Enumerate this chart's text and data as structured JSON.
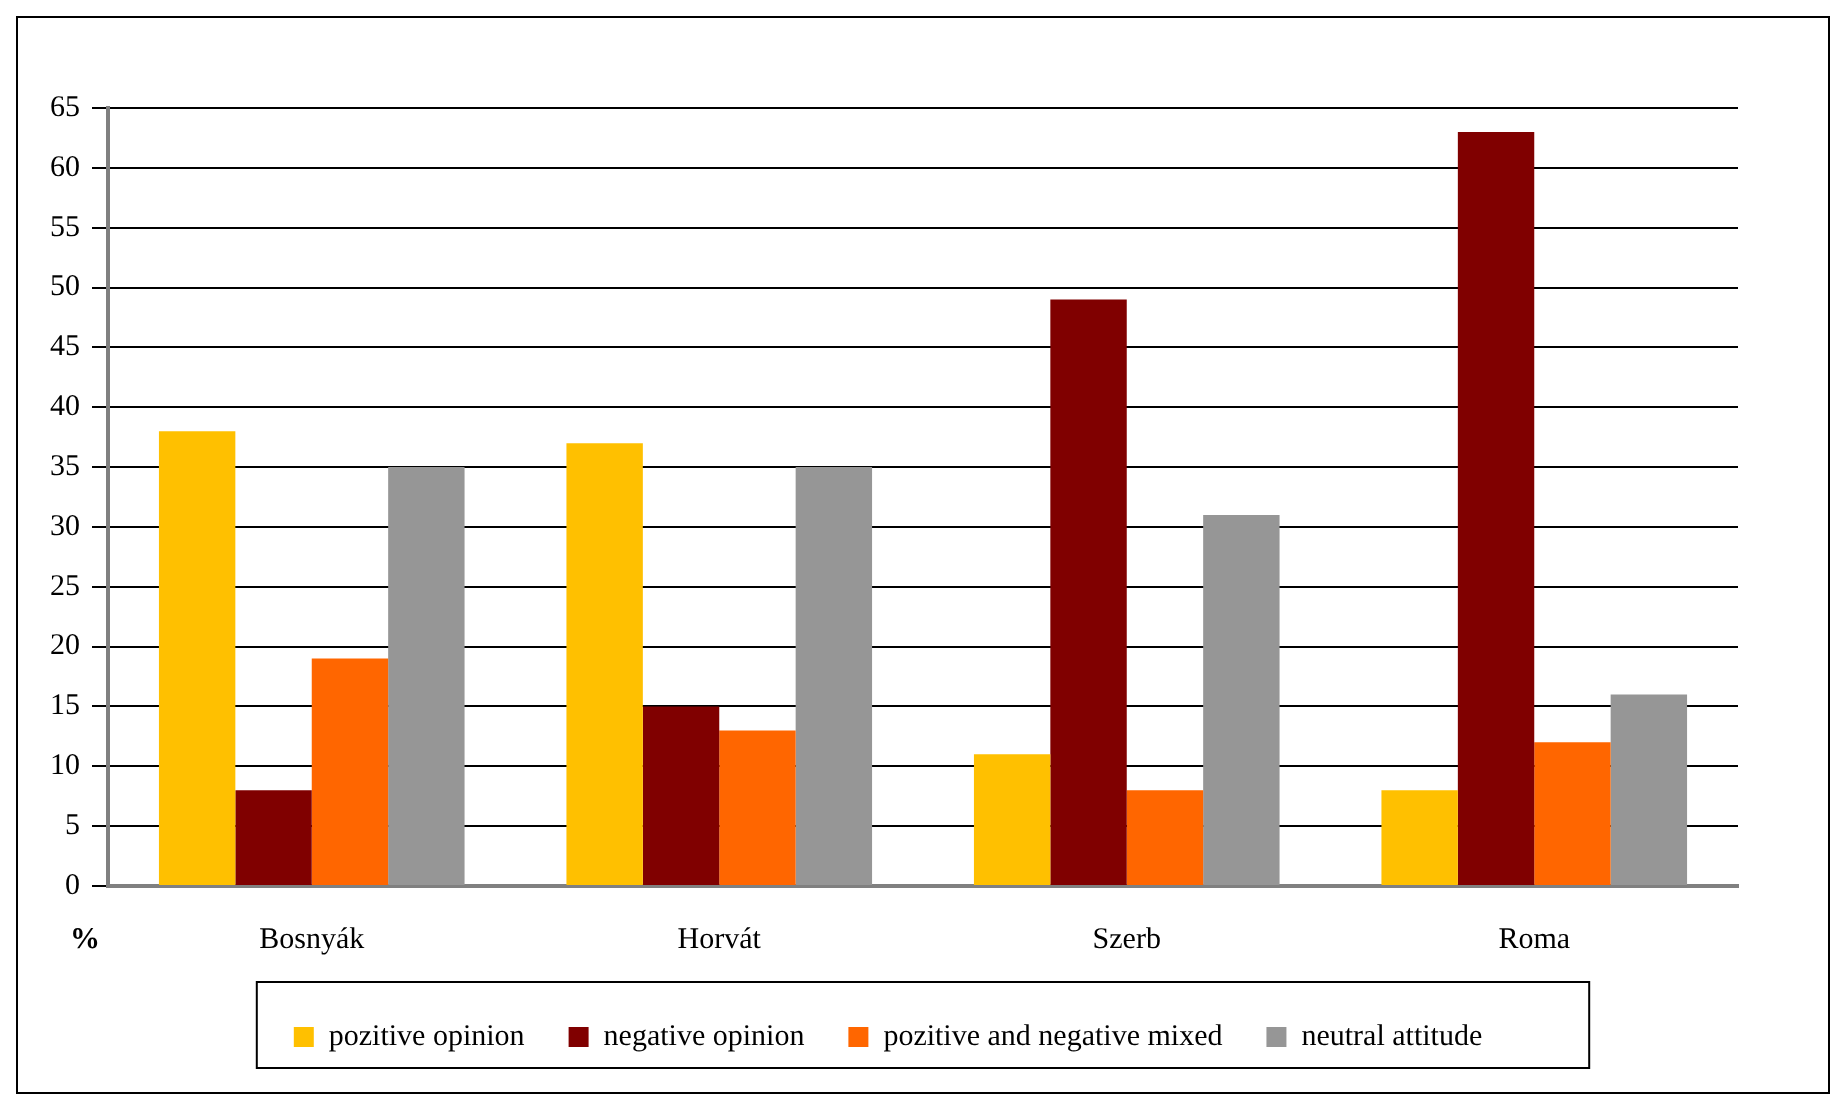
{
  "chart_data": {
    "type": "bar",
    "ylabel": "%",
    "categories": [
      "Bosnyák",
      "Horvát",
      "Szerb",
      "Roma"
    ],
    "series": [
      {
        "name": "pozitive opinion",
        "color": "#ffc000",
        "values": [
          38,
          37,
          11,
          8
        ]
      },
      {
        "name": "negative opinion",
        "color": "#800000",
        "values": [
          8,
          15,
          49,
          63
        ]
      },
      {
        "name": "pozitive and negative mixed",
        "color": "#ff6600",
        "values": [
          19,
          13,
          8,
          12
        ]
      },
      {
        "name": "neutral attitude",
        "color": "#969696",
        "values": [
          35,
          35,
          31,
          16
        ]
      }
    ],
    "ylim": [
      0,
      65
    ],
    "yticks": [
      0,
      5,
      10,
      15,
      20,
      25,
      30,
      35,
      40,
      45,
      50,
      55,
      60,
      65
    ],
    "grid": "y",
    "legend": "bottom"
  }
}
